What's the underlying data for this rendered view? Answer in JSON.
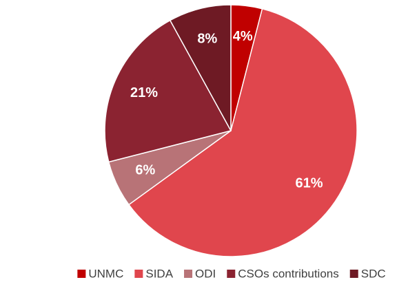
{
  "chart_data": {
    "type": "pie",
    "categories": [
      "UNMC",
      "SIDA",
      "ODI",
      "CSOs contributions",
      "SDC"
    ],
    "values": [
      4,
      61,
      6,
      21,
      8
    ],
    "value_labels": [
      "4%",
      "61%",
      "6%",
      "21%",
      "8%"
    ],
    "colors": [
      "#c00000",
      "#e0464d",
      "#b87377",
      "#8b2331",
      "#6e1a24"
    ],
    "legend": "bottom"
  }
}
